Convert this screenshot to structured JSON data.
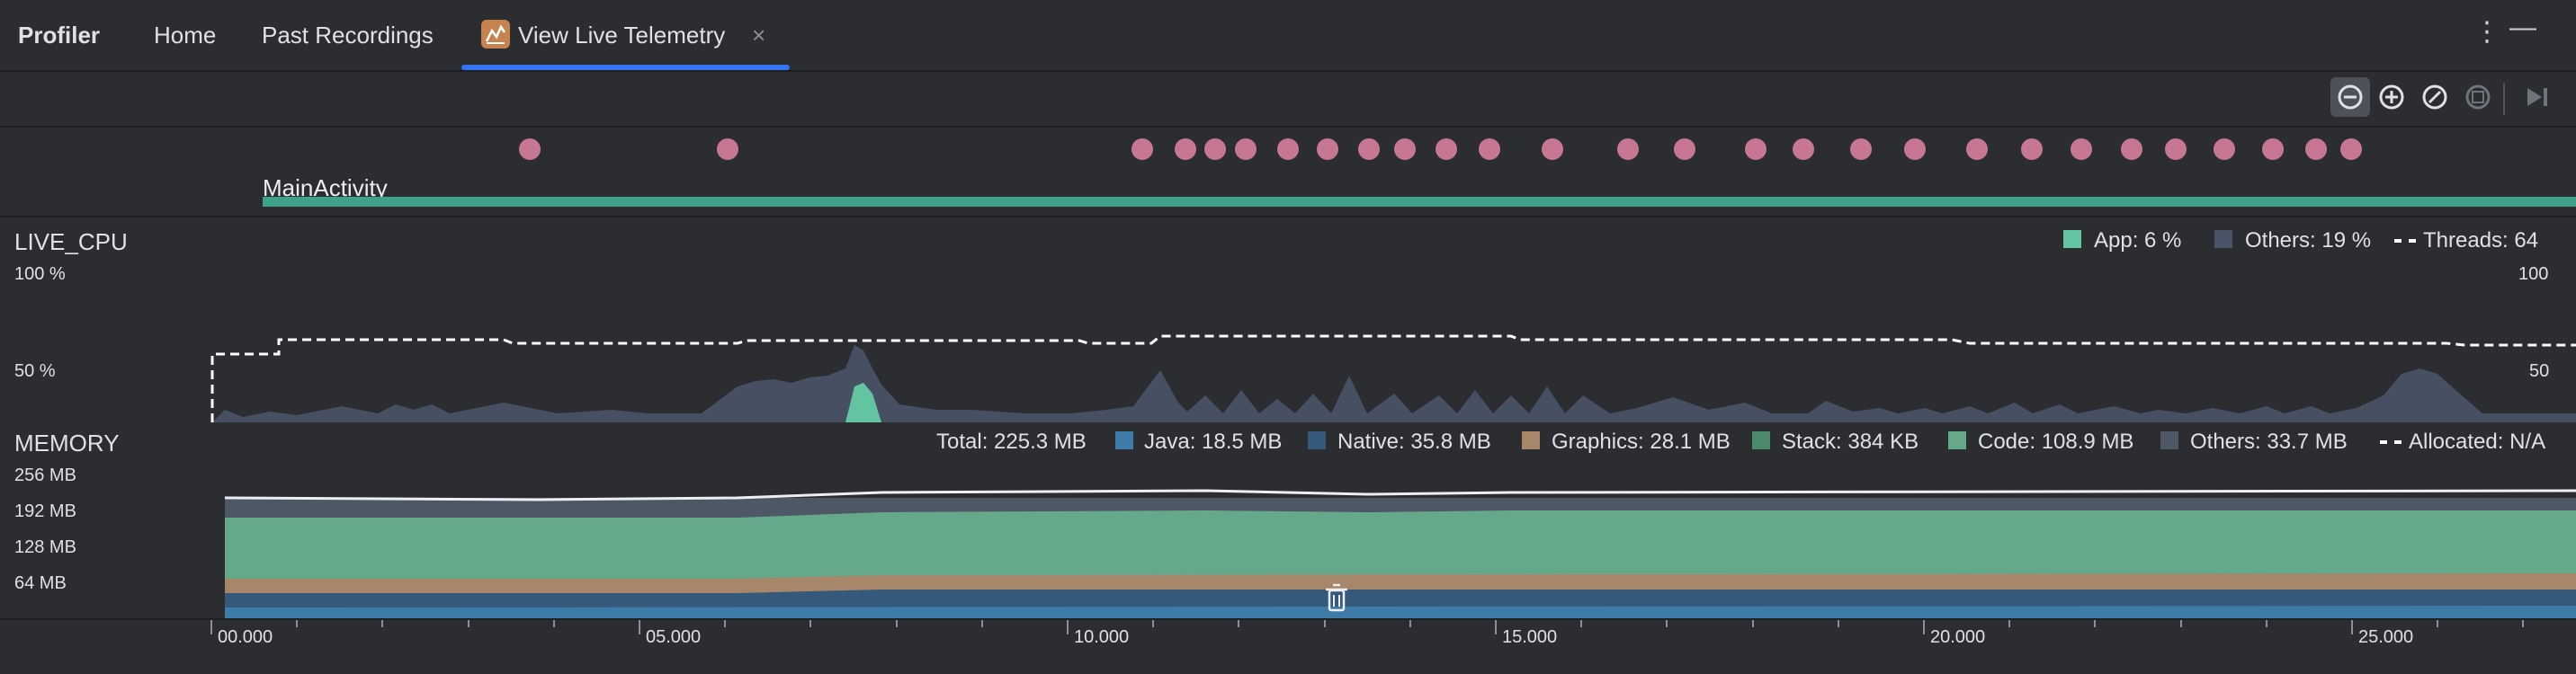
{
  "window": {
    "app_title": "Profiler",
    "tabs": [
      {
        "label": "Home"
      },
      {
        "label": "Past Recordings"
      },
      {
        "label": "View Live Telemetry",
        "active": true
      }
    ],
    "close_glyph": "×",
    "more_glyph": "⋮",
    "minimize_glyph": "—"
  },
  "toolbar": {
    "buttons": [
      "zoom-out-icon",
      "zoom-in-icon",
      "reset-zoom-icon",
      "frame-selection-icon",
      "go-live-icon"
    ]
  },
  "events": {
    "activity_label": "MainActivity",
    "dot_color": "#c77694",
    "activity_color": "#3fa08c"
  },
  "cpu": {
    "title": "LIVE_CPU",
    "left_axis": [
      "100 %",
      "50 %"
    ],
    "right_axis": [
      "100",
      "50"
    ],
    "legend": {
      "app": "App: 6 %",
      "others": "Others: 19 %",
      "threads": "Threads: 64"
    },
    "colors": {
      "app": "#62c4a0",
      "others": "#4a5469",
      "threads": "#ffffff"
    }
  },
  "memory": {
    "title": "MEMORY",
    "axis": [
      "256 MB",
      "192 MB",
      "128 MB",
      "64 MB"
    ],
    "legend": {
      "total": "Total: 225.3 MB",
      "java": "Java: 18.5 MB",
      "native": "Native: 35.8 MB",
      "graphics": "Graphics: 28.1 MB",
      "stack": "Stack: 384 KB",
      "code": "Code: 108.9 MB",
      "others": "Others: 33.7 MB",
      "allocated": "Allocated: N/A"
    },
    "colors": {
      "java": "#3f7ba8",
      "native": "#34597a",
      "graphics": "#a8866a",
      "stack": "#4c8a6b",
      "code": "#66a88a",
      "others": "#4d5766"
    }
  },
  "timeline": {
    "labels": [
      "00.000",
      "05.000",
      "10.000",
      "15.000",
      "20.000",
      "25.000"
    ]
  }
}
